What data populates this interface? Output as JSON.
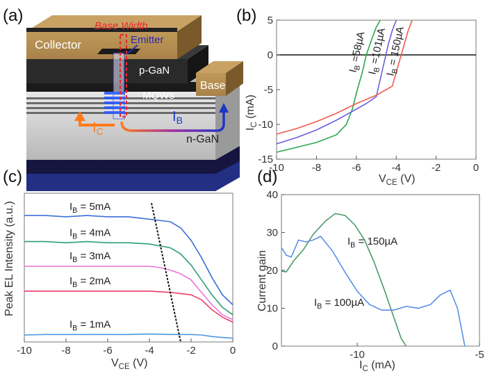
{
  "panels": {
    "a": "(a)",
    "b": "(b)",
    "c": "(c)",
    "d": "(d)"
  },
  "device": {
    "collector": "Collector",
    "emitter": "Emitter",
    "base_width": "Base Width",
    "p_gan": "p-GaN",
    "mqws": "MQWs",
    "base": "Base",
    "n_gan": "n-GaN",
    "ic": "I",
    "ic_sub": "C",
    "ib": "I",
    "ib_sub": "B",
    "colors": {
      "ic_arrow": "#ff7a1a",
      "ib_arrow": "#1c36c8",
      "base_width": "#e8262b",
      "emitter": "#2a2ab8"
    }
  },
  "chart_data": [
    {
      "id": "b",
      "type": "line",
      "xlabel": "V",
      "xlabel_sub": "CE",
      "xlabel_unit": " (V)",
      "ylabel": "I",
      "ylabel_sub": "C",
      "ylabel_unit": " (mA)",
      "xlim": [
        -10,
        0
      ],
      "ylim": [
        -15,
        5
      ],
      "xticks": [
        -10,
        -8,
        -6,
        -4,
        -2,
        0
      ],
      "yticks": [
        5,
        0,
        -5,
        -10,
        -15
      ],
      "series": [
        {
          "name": "I_B = 58µA",
          "label": "I",
          "label_sub": "B",
          "label_val": " =58µA",
          "color": "#2aa84a",
          "x": [
            -10,
            -9,
            -8,
            -7,
            -6.5,
            -6.2,
            -6.0,
            -5.7,
            -5.5,
            -5.2,
            -5.0,
            -4.8
          ],
          "y": [
            -14.0,
            -13.3,
            -12.6,
            -11.5,
            -10.0,
            -7.8,
            -5.5,
            -2.5,
            0.0,
            2.5,
            4.0,
            5.0
          ]
        },
        {
          "name": "I_B = 101µA",
          "label": "I",
          "label_sub": "B",
          "label_val": " =101µA",
          "color": "#6b5de0",
          "x": [
            -10,
            -9,
            -8,
            -7,
            -6,
            -5.5,
            -5,
            -4.8,
            -4.6,
            -4.4,
            -4.2,
            -4.0
          ],
          "y": [
            -12.8,
            -11.9,
            -10.8,
            -9.4,
            -7.8,
            -7.0,
            -6.0,
            -3.5,
            -1.0,
            1.5,
            3.5,
            5.0
          ]
        },
        {
          "name": "I_B = 150µA",
          "label": "I",
          "label_sub": "B",
          "label_val": " = 150µA",
          "color": "#f05a4f",
          "x": [
            -10,
            -9,
            -8,
            -7,
            -6,
            -5,
            -4.2,
            -4.0,
            -3.8,
            -3.6,
            -3.4,
            -3.2
          ],
          "y": [
            -11.4,
            -10.6,
            -9.6,
            -8.4,
            -7.0,
            -5.8,
            -4.5,
            -2.5,
            -0.5,
            1.5,
            3.5,
            5.0
          ]
        }
      ]
    },
    {
      "id": "c",
      "type": "line",
      "xlabel": "V",
      "xlabel_sub": "CE",
      "xlabel_unit": " (V)",
      "ylabel": "Peak EL Intensity (a.u.)",
      "xlim": [
        -10,
        0
      ],
      "ylim": [
        0,
        6
      ],
      "xticks": [
        -10,
        -8,
        -6,
        -4,
        -2,
        0
      ],
      "series": [
        {
          "name": "I_B = 5mA",
          "label": "I",
          "label_sub": "B",
          "label_val": " = 5mA",
          "color": "#3a6fd8",
          "x": [
            -10,
            -9,
            -8,
            -7,
            -6,
            -5,
            -4,
            -3,
            -2.5,
            -2,
            -1.5,
            -1,
            -0.5,
            0
          ],
          "y": [
            5.1,
            5.1,
            5.05,
            5.1,
            5.05,
            5.05,
            4.95,
            4.85,
            4.6,
            4.1,
            3.4,
            2.6,
            1.9,
            1.5
          ]
        },
        {
          "name": "I_B = 4mA",
          "label": "I",
          "label_sub": "B",
          "label_val": " = 4mA",
          "color": "#2e9e7a",
          "x": [
            -10,
            -9,
            -8,
            -7,
            -6,
            -5,
            -4,
            -3,
            -2.5,
            -2,
            -1.5,
            -1,
            -0.5,
            0
          ],
          "y": [
            4.05,
            4.05,
            4.0,
            4.05,
            4.0,
            4.0,
            3.95,
            3.8,
            3.55,
            3.1,
            2.5,
            1.9,
            1.4,
            1.1
          ]
        },
        {
          "name": "I_B = 3mA",
          "label": "I",
          "label_sub": "B",
          "label_val": " = 3mA",
          "color": "#e87ad8",
          "x": [
            -10,
            -9,
            -8,
            -7,
            -6,
            -5,
            -4,
            -3.5,
            -3,
            -2.5,
            -2,
            -1.5,
            -1,
            -0.5,
            0
          ],
          "y": [
            3.05,
            3.05,
            3.05,
            3.05,
            3.05,
            3.05,
            3.05,
            3.0,
            2.9,
            2.75,
            2.5,
            2.0,
            1.5,
            1.1,
            0.9
          ]
        },
        {
          "name": "I_B = 2mA",
          "label": "I",
          "label_sub": "B",
          "label_val": " = 2mA",
          "color": "#f03a6a",
          "x": [
            -10,
            -9,
            -8,
            -7,
            -6,
            -5,
            -4,
            -3,
            -2.5,
            -2,
            -1.5,
            -1,
            -0.5,
            0
          ],
          "y": [
            2.05,
            2.05,
            2.05,
            2.05,
            2.05,
            2.05,
            2.05,
            2.0,
            1.95,
            1.9,
            1.7,
            1.3,
            1.0,
            0.8
          ]
        },
        {
          "name": "I_B = 1mA",
          "label": "I",
          "label_sub": "B",
          "label_val": " = 1mA",
          "color": "#4a9ae0",
          "x": [
            -10,
            -9,
            -8,
            -7,
            -6,
            -5,
            -4,
            -3,
            -2,
            -1.5,
            -1,
            -0.5,
            0
          ],
          "y": [
            0.28,
            0.3,
            0.3,
            0.3,
            0.3,
            0.3,
            0.32,
            0.3,
            0.3,
            0.28,
            0.22,
            0.18,
            0.15
          ]
        }
      ],
      "guide": {
        "x": [
          -3.9,
          -2.5
        ],
        "y": [
          5.6,
          0.0
        ]
      }
    },
    {
      "id": "d",
      "type": "line",
      "xlabel": "I",
      "xlabel_sub": "C",
      "xlabel_unit": " (mA)",
      "ylabel": "Current gain",
      "xlim": [
        -13.1,
        -5
      ],
      "ylim": [
        0,
        40
      ],
      "xticks": [
        -10,
        -5
      ],
      "yticks": [
        0,
        10,
        20,
        30,
        40
      ],
      "series": [
        {
          "name": "I_B = 150µA",
          "label": "I",
          "label_sub": "B",
          "label_val": " = 150µA",
          "color": "#4a9a6a",
          "x": [
            -13.1,
            -12.9,
            -12.6,
            -12.2,
            -11.8,
            -11.3,
            -10.9,
            -10.5,
            -10.1,
            -9.7,
            -9.3,
            -8.9,
            -8.5,
            -8.2,
            -8.0
          ],
          "y": [
            19.8,
            19.6,
            22.5,
            25.5,
            29.5,
            33.0,
            35.0,
            34.5,
            32.0,
            28.0,
            22.0,
            15.0,
            7.5,
            2.0,
            0.0
          ]
        },
        {
          "name": "I_B = 100µA",
          "label": "I",
          "label_sub": "B",
          "label_val": " = 100µA",
          "color": "#5b8fe6",
          "x": [
            -13.1,
            -12.9,
            -12.7,
            -12.4,
            -12.1,
            -11.8,
            -11.5,
            -11.0,
            -10.5,
            -10.0,
            -9.5,
            -9.0,
            -8.5,
            -8.0,
            -7.5,
            -7.0,
            -6.6,
            -6.2,
            -5.9,
            -5.6
          ],
          "y": [
            26.0,
            24.0,
            23.5,
            28.0,
            27.5,
            28.0,
            29.0,
            25.0,
            19.5,
            14.5,
            11.0,
            9.5,
            9.5,
            10.5,
            10.0,
            11.0,
            13.5,
            14.8,
            10.0,
            0.0
          ]
        }
      ]
    }
  ]
}
